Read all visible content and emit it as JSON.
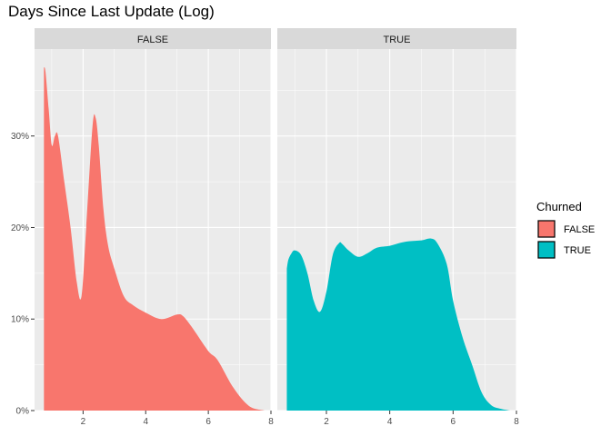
{
  "chart_data": {
    "type": "area",
    "title": "Days Since Last Update (Log)",
    "xlabel": "",
    "ylabel": "",
    "xlim": [
      0.45,
      8.0
    ],
    "ylim": [
      0,
      0.395
    ],
    "x_ticks": [
      2,
      4,
      6,
      8
    ],
    "y_ticks": [
      0,
      0.1,
      0.2,
      0.3
    ],
    "y_tick_labels": [
      "0%",
      "10%",
      "20%",
      "30%"
    ],
    "grid": true,
    "legend": {
      "title": "Churned",
      "position": "right",
      "entries": [
        "FALSE",
        "TRUE"
      ]
    },
    "panels": [
      {
        "label": "FALSE",
        "fill": "#F8766D",
        "x": [
          0.75,
          0.8,
          0.9,
          1.0,
          1.1,
          1.2,
          1.4,
          1.6,
          1.8,
          1.95,
          2.1,
          2.3,
          2.4,
          2.5,
          2.65,
          2.8,
          3.0,
          3.3,
          3.6,
          4.0,
          4.5,
          5.0,
          5.2,
          5.5,
          6.0,
          6.3,
          6.8,
          7.3,
          7.8
        ],
        "y": [
          0.375,
          0.37,
          0.33,
          0.29,
          0.3,
          0.3,
          0.25,
          0.2,
          0.14,
          0.125,
          0.2,
          0.31,
          0.32,
          0.29,
          0.22,
          0.18,
          0.155,
          0.125,
          0.115,
          0.107,
          0.1,
          0.105,
          0.103,
          0.09,
          0.065,
          0.055,
          0.025,
          0.005,
          0.0
        ]
      },
      {
        "label": "TRUE",
        "fill": "#00BFC4",
        "x": [
          0.75,
          0.8,
          0.9,
          1.0,
          1.2,
          1.4,
          1.6,
          1.8,
          2.0,
          2.2,
          2.4,
          2.5,
          2.7,
          3.0,
          3.3,
          3.6,
          4.0,
          4.3,
          4.6,
          5.0,
          5.3,
          5.5,
          5.8,
          6.0,
          6.3,
          6.6,
          6.9,
          7.2,
          7.5,
          7.8
        ],
        "y": [
          0.155,
          0.165,
          0.172,
          0.175,
          0.17,
          0.15,
          0.12,
          0.108,
          0.13,
          0.17,
          0.183,
          0.182,
          0.175,
          0.168,
          0.172,
          0.178,
          0.18,
          0.183,
          0.185,
          0.186,
          0.188,
          0.183,
          0.16,
          0.12,
          0.08,
          0.05,
          0.02,
          0.006,
          0.002,
          0.0
        ]
      }
    ]
  }
}
